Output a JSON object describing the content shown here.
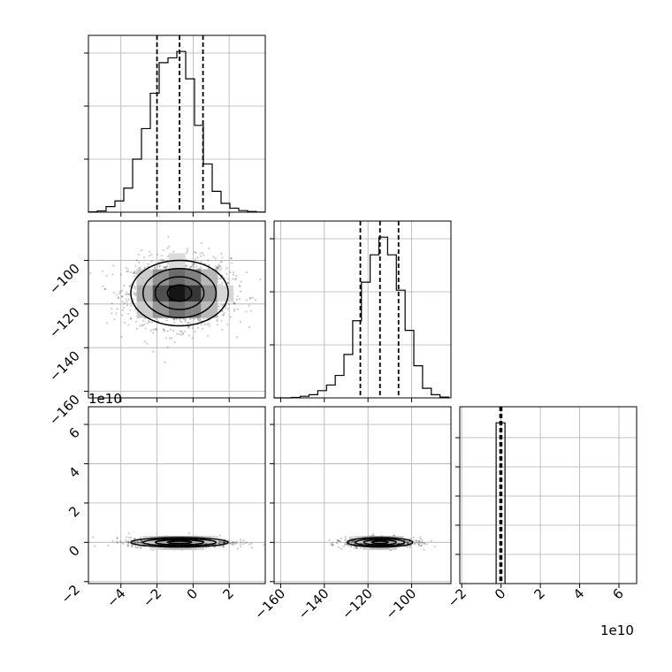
{
  "chart_data": [
    {
      "type": "histogram",
      "panel": "var1",
      "x_ticks": [
        "−4",
        "−2",
        "0",
        "2"
      ],
      "xlim": [
        -5.8,
        4.0
      ],
      "bin_edges": [
        -5.8,
        -5.31,
        -4.82,
        -4.33,
        -3.84,
        -3.35,
        -2.86,
        -2.37,
        -1.88,
        -1.39,
        -0.9,
        -0.41,
        0.08,
        0.57,
        1.06,
        1.55,
        2.04,
        2.53,
        3.02,
        3.51,
        4.0
      ],
      "counts": [
        0.002,
        0.008,
        0.035,
        0.07,
        0.15,
        0.33,
        0.52,
        0.74,
        0.93,
        0.96,
        1.0,
        0.83,
        0.54,
        0.3,
        0.13,
        0.055,
        0.025,
        0.01,
        0.004,
        0.001
      ],
      "ylim": [
        0,
        1.1
      ],
      "quantiles": [
        -2.0,
        -0.75,
        0.55
      ],
      "grid": true
    },
    {
      "type": "contour",
      "panel": "var1-vs-var2",
      "x_ticks": [
        "−4",
        "−2",
        "0",
        "2"
      ],
      "y_ticks": [
        "−160",
        "−140",
        "−120",
        "−100"
      ],
      "xlim": [
        -5.8,
        4.0
      ],
      "ylim": [
        -163,
        -82
      ],
      "center": [
        -0.75,
        -115
      ],
      "levels_sigma": [
        0.5,
        1.0,
        1.5,
        2.0
      ],
      "sigma": [
        1.35,
        7.5
      ],
      "grid": true
    },
    {
      "type": "histogram",
      "panel": "var2",
      "x_ticks": [
        "−160",
        "−140",
        "−120",
        "−100"
      ],
      "xlim": [
        -163,
        -82
      ],
      "bin_edges": [
        -163,
        -159,
        -155,
        -151,
        -147,
        -143,
        -139,
        -135,
        -131,
        -127,
        -123,
        -119,
        -115,
        -111,
        -107,
        -103,
        -99,
        -95,
        -91,
        -87,
        -83
      ],
      "counts": [
        0.0,
        0.0,
        0.003,
        0.01,
        0.02,
        0.045,
        0.08,
        0.14,
        0.27,
        0.48,
        0.72,
        0.89,
        1.0,
        0.89,
        0.67,
        0.42,
        0.2,
        0.06,
        0.02,
        0.005
      ],
      "ylim": [
        0,
        1.1
      ],
      "quantiles": [
        -123.5,
        -114.5,
        -106
      ],
      "grid": true
    },
    {
      "type": "contour",
      "panel": "var1-vs-var3",
      "x_ticks": [
        "−4",
        "−2",
        "0",
        "2"
      ],
      "y_ticks": [
        "−2",
        "0",
        "2",
        "4",
        "6"
      ],
      "y_offset": "1e10",
      "xlim": [
        -5.8,
        4.0
      ],
      "ylim": [
        -2.1,
        6.9
      ],
      "center": [
        -0.75,
        0.0
      ],
      "levels_sigma": [
        0.5,
        1.0,
        1.5,
        2.0
      ],
      "sigma": [
        1.35,
        0.12
      ],
      "grid": true
    },
    {
      "type": "contour",
      "panel": "var2-vs-var3",
      "x_ticks": [
        "−160",
        "−140",
        "−120",
        "−100"
      ],
      "y_ticks": [
        "−2",
        "0",
        "2",
        "4",
        "6"
      ],
      "xlim": [
        -163,
        -82
      ],
      "ylim": [
        -2.1,
        6.9
      ],
      "center": [
        -114.5,
        0.0
      ],
      "levels_sigma": [
        0.5,
        1.0,
        1.5,
        2.0
      ],
      "sigma": [
        7.5,
        0.12
      ],
      "grid": true
    },
    {
      "type": "histogram",
      "panel": "var3",
      "x_ticks": [
        "−2",
        "0",
        "2",
        "4",
        "6"
      ],
      "x_offset": "1e10",
      "xlim": [
        -2.1,
        6.9
      ],
      "bin_edges": [
        -0.25,
        0.2
      ],
      "counts": [
        1.0
      ],
      "ylim": [
        0,
        1.1
      ],
      "quantiles": [
        -0.05,
        0.0,
        0.03
      ],
      "grid": true
    }
  ]
}
